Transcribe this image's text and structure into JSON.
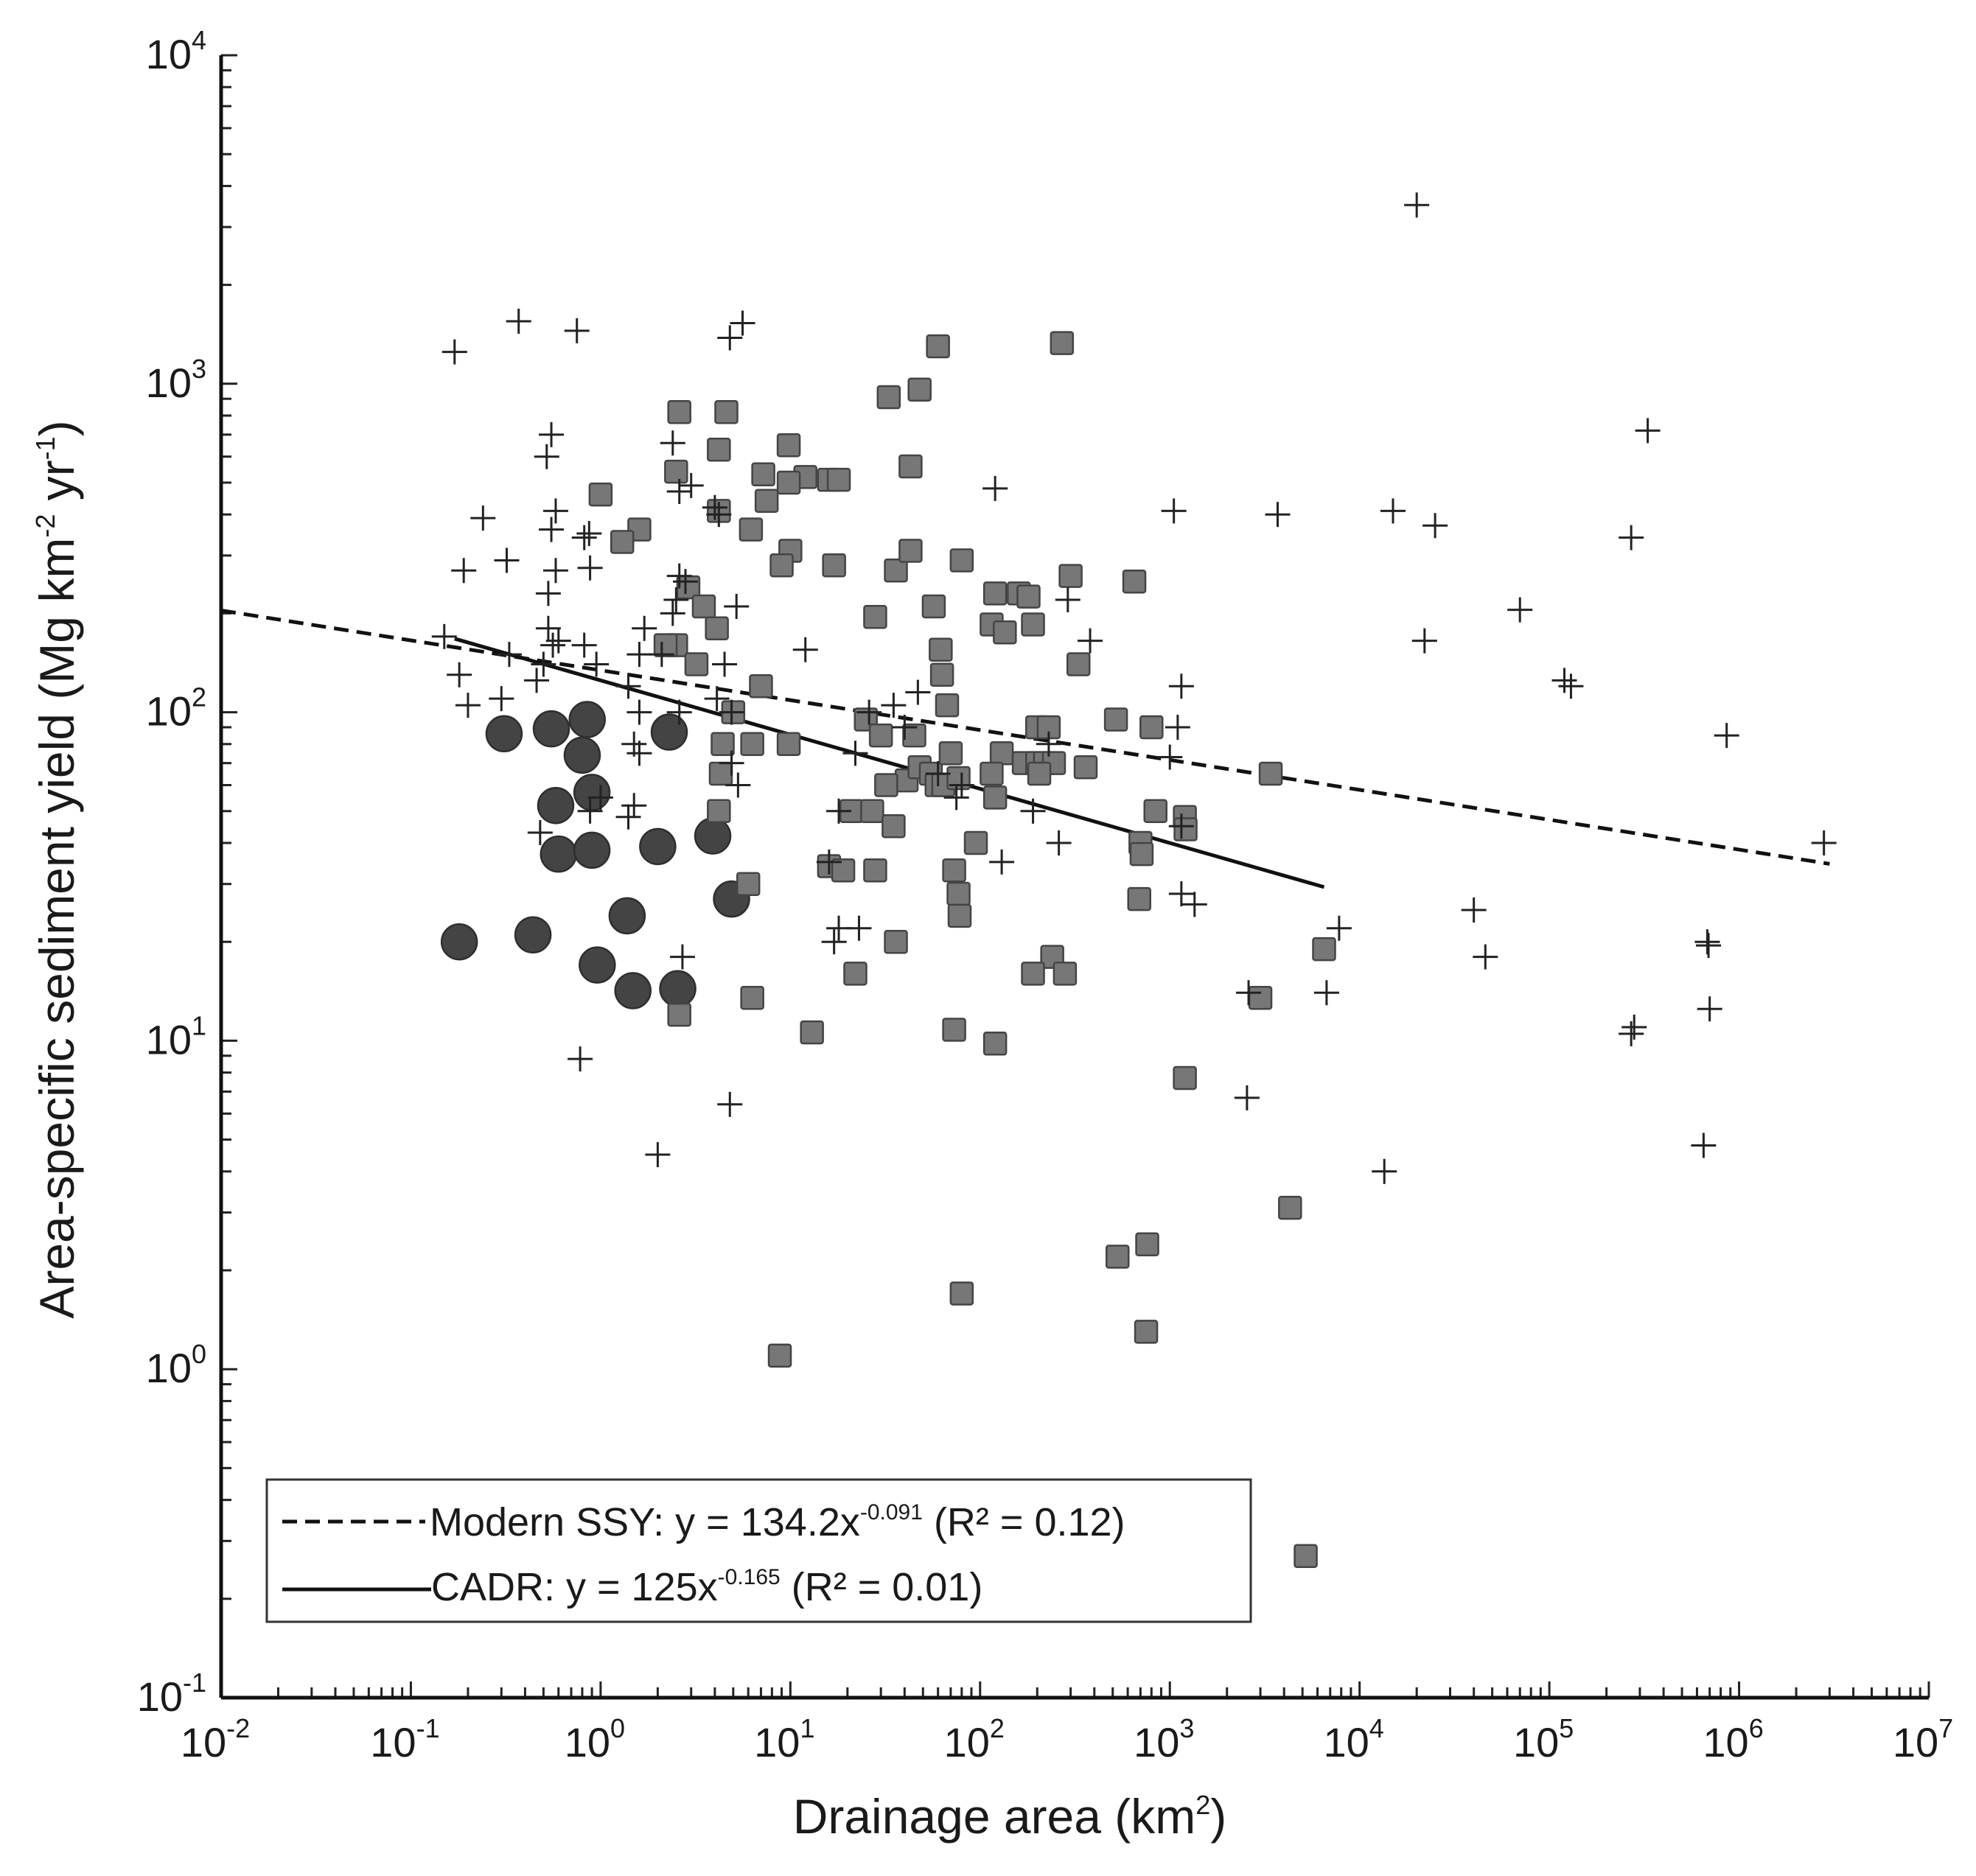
{
  "chart_data": {
    "type": "scatter",
    "title": "",
    "xlabel": "Drainage area (km",
    "xlabel_sup": "2",
    "xlabel_tail": ")",
    "ylabel": "Area-specific sediment yield (Mg km",
    "ylabel_sup1": "-2",
    "ylabel_mid": " yr",
    "ylabel_sup2": "-1",
    "ylabel_tail": ")",
    "x_scale": "log",
    "y_scale": "log",
    "xlim": [
      0.01,
      10000000
    ],
    "ylim": [
      0.1,
      10000
    ],
    "x_ticks": [
      {
        "base": "10",
        "exp": "-2"
      },
      {
        "base": "10",
        "exp": "-1"
      },
      {
        "base": "10",
        "exp": "0"
      },
      {
        "base": "10",
        "exp": "1"
      },
      {
        "base": "10",
        "exp": "2"
      },
      {
        "base": "10",
        "exp": "3"
      },
      {
        "base": "10",
        "exp": "4"
      },
      {
        "base": "10",
        "exp": "5"
      },
      {
        "base": "10",
        "exp": "6"
      },
      {
        "base": "10",
        "exp": "7"
      }
    ],
    "y_ticks": [
      {
        "base": "10",
        "exp": "-1"
      },
      {
        "base": "10",
        "exp": "0"
      },
      {
        "base": "10",
        "exp": "1"
      },
      {
        "base": "10",
        "exp": "2"
      },
      {
        "base": "10",
        "exp": "3"
      },
      {
        "base": "10",
        "exp": "4"
      }
    ],
    "grid": false,
    "legend_position": "bottom-left",
    "series": [
      {
        "name": "plus",
        "marker": "plus",
        "color": "#222222",
        "points": [
          [
            0.17,
            1250
          ],
          [
            0.37,
            1550
          ],
          [
            0.75,
            1450
          ],
          [
            4.8,
            1380
          ],
          [
            5.6,
            1530
          ],
          [
            2.4,
            660
          ],
          [
            0.55,
            700
          ],
          [
            0.52,
            600
          ],
          [
            0.55,
            360
          ],
          [
            0.58,
            410
          ],
          [
            0.24,
            390
          ],
          [
            0.19,
            270
          ],
          [
            0.32,
            290
          ],
          [
            0.53,
            230
          ],
          [
            0.58,
            270
          ],
          [
            0.82,
            340
          ],
          [
            0.87,
            350
          ],
          [
            0.88,
            275
          ],
          [
            3.0,
            490
          ],
          [
            2.6,
            470
          ],
          [
            4.0,
            420
          ],
          [
            4.2,
            400
          ],
          [
            2.5,
            220
          ],
          [
            2.4,
            200
          ],
          [
            2.8,
            250
          ],
          [
            2.6,
            260
          ],
          [
            5.2,
            210
          ],
          [
            4.5,
            140
          ],
          [
            1.7,
            180
          ],
          [
            0.53,
            180
          ],
          [
            0.56,
            160
          ],
          [
            0.6,
            165
          ],
          [
            0.5,
            140
          ],
          [
            0.95,
            140
          ],
          [
            0.82,
            160
          ],
          [
            0.18,
            130
          ],
          [
            0.33,
            150
          ],
          [
            0.15,
            170
          ],
          [
            0.2,
            105
          ],
          [
            0.3,
            110
          ],
          [
            0.46,
            125
          ],
          [
            1.6,
            150
          ],
          [
            1.4,
            120
          ],
          [
            1.6,
            100
          ],
          [
            2.6,
            100
          ],
          [
            4.1,
            110
          ],
          [
            4.9,
            100
          ],
          [
            2.1,
            150
          ],
          [
            12,
            155
          ],
          [
            22,
            75
          ],
          [
            40,
            90
          ],
          [
            47,
            115
          ],
          [
            35,
            105
          ],
          [
            26,
            100
          ],
          [
            60,
            65
          ],
          [
            75,
            55
          ],
          [
            80,
            60
          ],
          [
            190,
            50
          ],
          [
            260,
            40
          ],
          [
            18,
            50
          ],
          [
            16,
            35
          ],
          [
            18,
            22
          ],
          [
            23,
            22
          ],
          [
            17,
            20
          ],
          [
            1.6,
            75
          ],
          [
            1.5,
            80
          ],
          [
            1.0,
            55
          ],
          [
            0.88,
            50
          ],
          [
            1.4,
            48
          ],
          [
            1.5,
            52
          ],
          [
            0.48,
            43
          ],
          [
            5.3,
            60
          ],
          [
            4.9,
            70
          ],
          [
            2.7,
            18
          ],
          [
            2.0,
            4.5
          ],
          [
            4.8,
            6.4
          ],
          [
            0.78,
            8.8
          ],
          [
            120,
            480
          ],
          [
            130,
            35
          ],
          [
            230,
            80
          ],
          [
            290,
            220
          ],
          [
            380,
            165
          ],
          [
            1050,
            410
          ],
          [
            1150,
            120
          ],
          [
            1100,
            90
          ],
          [
            1000,
            73
          ],
          [
            1150,
            45
          ],
          [
            1150,
            28
          ],
          [
            1350,
            26
          ],
          [
            2600,
            14
          ],
          [
            2550,
            6.7
          ],
          [
            6700,
            14
          ],
          [
            7800,
            22
          ],
          [
            3700,
            400
          ],
          [
            13500,
            4.0
          ],
          [
            15000,
            410
          ],
          [
            20000,
            3500
          ],
          [
            22000,
            165
          ],
          [
            25000,
            370
          ],
          [
            40000,
            25
          ],
          [
            46000,
            18
          ],
          [
            70000,
            205
          ],
          [
            120000,
            125
          ],
          [
            130000,
            120
          ],
          [
            270000,
            340
          ],
          [
            330000,
            720
          ],
          [
            280000,
            11
          ],
          [
            270000,
            10.5
          ],
          [
            680000,
            20
          ],
          [
            690000,
            19.5
          ],
          [
            700000,
            12.5
          ],
          [
            650000,
            4.8
          ],
          [
            860000,
            85
          ],
          [
            2800000,
            40
          ]
        ]
      },
      {
        "name": "squares",
        "marker": "square",
        "color": "#777777",
        "points": [
          [
            60,
            1300
          ],
          [
            270,
            1330
          ],
          [
            48,
            960
          ],
          [
            33,
            910
          ],
          [
            2.6,
            820
          ],
          [
            4.6,
            820
          ],
          [
            9.8,
            650
          ],
          [
            4.2,
            630
          ],
          [
            2.5,
            540
          ],
          [
            7.2,
            530
          ],
          [
            12,
            520
          ],
          [
            9.8,
            500
          ],
          [
            16,
            510
          ],
          [
            18,
            510
          ],
          [
            43,
            560
          ],
          [
            7.5,
            440
          ],
          [
            1.0,
            460
          ],
          [
            4.2,
            410
          ],
          [
            6.2,
            360
          ],
          [
            1.6,
            360
          ],
          [
            1.3,
            330
          ],
          [
            10,
            310
          ],
          [
            9,
            280
          ],
          [
            17,
            280
          ],
          [
            36,
            270
          ],
          [
            43,
            310
          ],
          [
            80,
            290
          ],
          [
            2.9,
            240
          ],
          [
            3.5,
            210
          ],
          [
            4.1,
            180
          ],
          [
            2.5,
            160
          ],
          [
            3.2,
            140
          ],
          [
            2.2,
            160
          ],
          [
            28,
            195
          ],
          [
            57,
            210
          ],
          [
            120,
            230
          ],
          [
            160,
            230
          ],
          [
            180,
            225
          ],
          [
            300,
            260
          ],
          [
            650,
            250
          ],
          [
            115,
            185
          ],
          [
            135,
            175
          ],
          [
            190,
            185
          ],
          [
            62,
            155
          ],
          [
            63,
            130
          ],
          [
            330,
            140
          ],
          [
            7,
            120
          ],
          [
            25,
            95
          ],
          [
            30,
            85
          ],
          [
            45,
            85
          ],
          [
            67,
            105
          ],
          [
            200,
            90
          ],
          [
            230,
            90
          ],
          [
            130,
            75
          ],
          [
            170,
            70
          ],
          [
            200,
            70
          ],
          [
            220,
            70
          ],
          [
            245,
            70
          ],
          [
            360,
            68
          ],
          [
            520,
            95
          ],
          [
            800,
            90
          ],
          [
            5,
            100
          ],
          [
            4.4,
            80
          ],
          [
            6.3,
            80
          ],
          [
            9.8,
            80
          ],
          [
            4.3,
            65
          ],
          [
            4.2,
            50
          ],
          [
            41,
            62
          ],
          [
            48,
            68
          ],
          [
            55,
            65
          ],
          [
            70,
            75
          ],
          [
            115,
            65
          ],
          [
            205,
            65
          ],
          [
            59,
            60
          ],
          [
            64,
            60
          ],
          [
            77,
            63
          ],
          [
            120,
            55
          ],
          [
            32,
            60
          ],
          [
            21,
            50
          ],
          [
            27,
            50
          ],
          [
            35,
            45
          ],
          [
            36,
            20
          ],
          [
            22,
            16
          ],
          [
            16,
            34
          ],
          [
            19,
            33
          ],
          [
            28,
            33
          ],
          [
            95,
            40
          ],
          [
            73,
            33
          ],
          [
            77,
            28
          ],
          [
            78,
            24
          ],
          [
            840,
            50
          ],
          [
            1200,
            48
          ],
          [
            1210,
            44
          ],
          [
            700,
            40
          ],
          [
            710,
            37
          ],
          [
            690,
            27
          ],
          [
            3400,
            65
          ],
          [
            6500,
            19
          ],
          [
            240,
            18
          ],
          [
            280,
            16
          ],
          [
            190,
            16
          ],
          [
            3000,
            13.5
          ],
          [
            6,
            30
          ],
          [
            6.3,
            13.5
          ],
          [
            2.6,
            12
          ],
          [
            13,
            10.6
          ],
          [
            73,
            10.8
          ],
          [
            120,
            9.8
          ],
          [
            1200,
            7.7
          ],
          [
            4300,
            3.1
          ],
          [
            760,
            2.4
          ],
          [
            530,
            2.2
          ],
          [
            80,
            1.7
          ],
          [
            750,
            1.3
          ],
          [
            8.8,
            1.1
          ],
          [
            5200,
            0.27
          ]
        ]
      },
      {
        "name": "circles",
        "marker": "circle",
        "color": "#444444",
        "points": [
          [
            0.31,
            86
          ],
          [
            0.55,
            89
          ],
          [
            0.85,
            95
          ],
          [
            2.3,
            87
          ],
          [
            0.8,
            74
          ],
          [
            0.9,
            57
          ],
          [
            0.58,
            52
          ],
          [
            0.6,
            37
          ],
          [
            0.9,
            38
          ],
          [
            2.0,
            39
          ],
          [
            3.9,
            42
          ],
          [
            0.18,
            20
          ],
          [
            0.44,
            21
          ],
          [
            0.96,
            17
          ],
          [
            1.38,
            24
          ],
          [
            1.48,
            14.2
          ],
          [
            2.55,
            14.4
          ],
          [
            4.9,
            27
          ]
        ]
      }
    ],
    "trendlines": [
      {
        "name": "Modern SSY",
        "style": "dashed",
        "a": 134.2,
        "b": -0.091,
        "x_range": [
          0.01,
          3000000
        ]
      },
      {
        "name": "CADR",
        "style": "solid",
        "a": 125,
        "b": -0.165,
        "x_range": [
          0.17,
          6500
        ]
      }
    ],
    "legend": [
      {
        "style": "dashed",
        "text_main": "Modern SSY: y = 134.2x",
        "text_exp": "-0.091",
        "text_tail": " (R² = 0.12)"
      },
      {
        "style": "solid",
        "text_main": "CADR: y = 125x",
        "text_exp": "-0.165",
        "text_tail": " (R² = 0.01)"
      }
    ]
  }
}
